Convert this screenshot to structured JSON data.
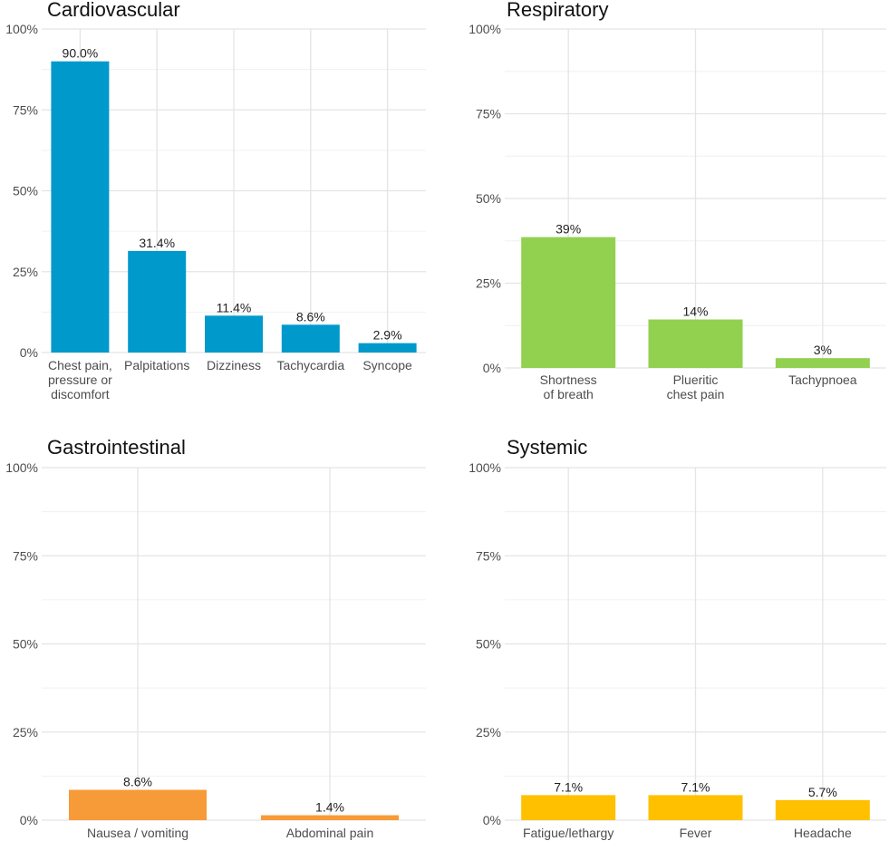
{
  "chart_data": [
    {
      "type": "bar",
      "title": "Cardiovascular",
      "categories": [
        "Chest pain,\npressure or\ndiscomfort",
        "Palpitations",
        "Dizziness",
        "Tachycardia",
        "Syncope"
      ],
      "values": [
        90.0,
        31.4,
        11.4,
        8.6,
        2.9
      ],
      "data_labels": [
        "90.0%",
        "31.4%",
        "11.4%",
        "8.6%",
        "2.9%"
      ],
      "ylim": [
        0,
        100
      ],
      "yticks": [
        "0%",
        "25%",
        "50%",
        "75%",
        "100%"
      ],
      "xlabel": "",
      "ylabel": "",
      "color": "#0099cc",
      "grid": true
    },
    {
      "type": "bar",
      "title": "Respiratory",
      "categories": [
        "Shortness\nof breath",
        "Plueritic\nchest pain",
        "Tachypnoea"
      ],
      "values": [
        38.6,
        14.3,
        2.9
      ],
      "data_labels": [
        "39%",
        "14%",
        "3%"
      ],
      "ylim": [
        0,
        100
      ],
      "yticks": [
        "0%",
        "25%",
        "50%",
        "75%",
        "100%"
      ],
      "xlabel": "",
      "ylabel": "",
      "color": "#92d050",
      "grid": true
    },
    {
      "type": "bar",
      "title": "Gastrointestinal",
      "categories": [
        "Nausea / vomiting",
        "Abdominal pain"
      ],
      "values": [
        8.6,
        1.4
      ],
      "data_labels": [
        "8.6%",
        "1.4%"
      ],
      "ylim": [
        0,
        100
      ],
      "yticks": [
        "0%",
        "25%",
        "50%",
        "75%",
        "100%"
      ],
      "xlabel": "",
      "ylabel": "",
      "color": "#f79a38",
      "grid": true
    },
    {
      "type": "bar",
      "title": "Systemic",
      "categories": [
        "Fatigue/lethargy",
        "Fever",
        "Headache"
      ],
      "values": [
        7.1,
        7.1,
        5.7
      ],
      "data_labels": [
        "7.1%",
        "7.1%",
        "5.7%"
      ],
      "ylim": [
        0,
        100
      ],
      "yticks": [
        "0%",
        "25%",
        "50%",
        "75%",
        "100%"
      ],
      "xlabel": "",
      "ylabel": "",
      "color": "#ffc000",
      "grid": true
    }
  ]
}
